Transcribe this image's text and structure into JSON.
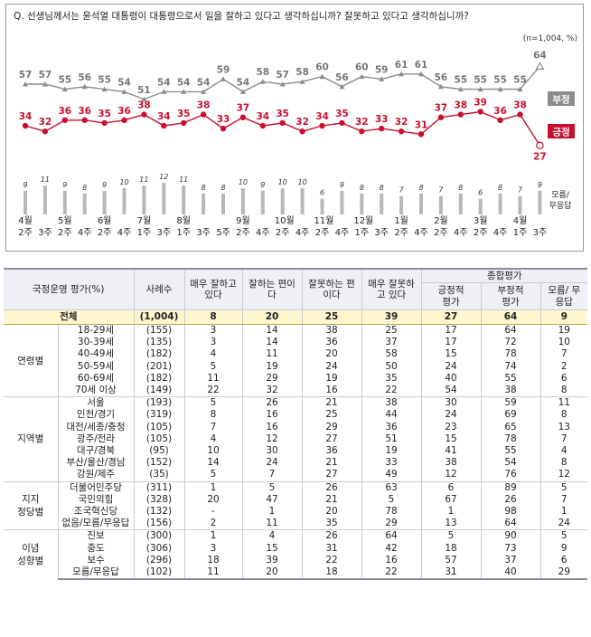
{
  "question": "Q. 선생님께서는 윤석열 대통령이 대통령으로서 일을 잘하고 있다고 생각하십니까? 잘못하고 있다고 생각하십니까?",
  "sample_note": "(n=1,004,  %)",
  "colors": {
    "negative": "#8c8c8c",
    "positive": "#c8102e",
    "dontknow": "#b8b8b8"
  },
  "chart_data": {
    "type": "line",
    "x": [
      "4월 2주",
      "4월 3주",
      "5월 2주",
      "5월 4주",
      "6월 2주",
      "6월 4주",
      "7월 1주",
      "7월 3주",
      "8월 1주",
      "8월 3주",
      "8월 5주",
      "9월 2주",
      "9월 4주",
      "10월 2주",
      "10월 4주",
      "11월 2주",
      "11월 4주",
      "12월 1주",
      "12월 3주",
      "1월 2주",
      "1월 4주",
      "2월 2주",
      "2월 4주",
      "3월 2주",
      "3월 4주",
      "4월 1주",
      "4월 3주"
    ],
    "x_tick_labels": [
      {
        "top": "4월",
        "bottom": "2주"
      },
      {
        "top": "",
        "bottom": "3주"
      },
      {
        "top": "5월",
        "bottom": "2주"
      },
      {
        "top": "",
        "bottom": "4주"
      },
      {
        "top": "6월",
        "bottom": "2주"
      },
      {
        "top": "",
        "bottom": "4주"
      },
      {
        "top": "7월",
        "bottom": "1주"
      },
      {
        "top": "",
        "bottom": "3주"
      },
      {
        "top": "8월",
        "bottom": "1주"
      },
      {
        "top": "",
        "bottom": "3주"
      },
      {
        "top": "",
        "bottom": "5주"
      },
      {
        "top": "9월",
        "bottom": "2주"
      },
      {
        "top": "",
        "bottom": "4주"
      },
      {
        "top": "10월",
        "bottom": "2주"
      },
      {
        "top": "",
        "bottom": "4주"
      },
      {
        "top": "11월",
        "bottom": "2주"
      },
      {
        "top": "",
        "bottom": "4주"
      },
      {
        "top": "12월",
        "bottom": "1주"
      },
      {
        "top": "",
        "bottom": "3주"
      },
      {
        "top": "1월",
        "bottom": "2주"
      },
      {
        "top": "",
        "bottom": "4주"
      },
      {
        "top": "2월",
        "bottom": "2주"
      },
      {
        "top": "",
        "bottom": "4주"
      },
      {
        "top": "3월",
        "bottom": "2주"
      },
      {
        "top": "",
        "bottom": "4주"
      },
      {
        "top": "4월",
        "bottom": "1주"
      },
      {
        "top": "",
        "bottom": "3주"
      }
    ],
    "series": [
      {
        "name": "부정",
        "values": [
          57,
          57,
          55,
          56,
          55,
          54,
          51,
          54,
          54,
          54,
          59,
          54,
          58,
          57,
          58,
          60,
          56,
          60,
          59,
          61,
          61,
          56,
          55,
          55,
          55,
          55,
          64
        ]
      },
      {
        "name": "긍정",
        "values": [
          34,
          32,
          36,
          36,
          35,
          36,
          38,
          34,
          35,
          38,
          33,
          37,
          34,
          35,
          32,
          34,
          35,
          32,
          33,
          32,
          31,
          37,
          38,
          39,
          36,
          38,
          27
        ]
      },
      {
        "name": "모름/무응답",
        "values": [
          9,
          11,
          9,
          8,
          9,
          10,
          11,
          12,
          11,
          8,
          8,
          10,
          9,
          10,
          10,
          6,
          9,
          8,
          8,
          7,
          8,
          7,
          8,
          6,
          8,
          7,
          9
        ]
      }
    ]
  },
  "table": {
    "headers": {
      "col0": "국정운영 평가(%)",
      "col1": "사례수",
      "col2": "매우 잘하고 있다",
      "col3": "잘하는 편이다",
      "col4": "잘못하는 편이다",
      "col5": "매우 잘못하고 있다",
      "group": "종합평가",
      "col6": "긍정적 평가",
      "col7": "부정적 평가",
      "col8": "모름/ 무응답"
    },
    "total": {
      "label": "전체",
      "cells": [
        "(1,004)",
        "8",
        "20",
        "25",
        "39",
        "27",
        "64",
        "9"
      ]
    },
    "groups": [
      {
        "name": "연령별",
        "rows": [
          {
            "label": "18-29세",
            "cells": [
              "(155)",
              "3",
              "14",
              "38",
              "25",
              "17",
              "64",
              "19"
            ]
          },
          {
            "label": "30-39세",
            "cells": [
              "(135)",
              "3",
              "14",
              "36",
              "37",
              "17",
              "72",
              "10"
            ]
          },
          {
            "label": "40-49세",
            "cells": [
              "(182)",
              "4",
              "11",
              "20",
              "58",
              "15",
              "78",
              "7"
            ]
          },
          {
            "label": "50-59세",
            "cells": [
              "(201)",
              "5",
              "19",
              "24",
              "50",
              "24",
              "74",
              "2"
            ]
          },
          {
            "label": "60-69세",
            "cells": [
              "(182)",
              "11",
              "29",
              "19",
              "35",
              "40",
              "55",
              "6"
            ]
          },
          {
            "label": "70세 이상",
            "cells": [
              "(149)",
              "22",
              "32",
              "16",
              "22",
              "54",
              "38",
              "8"
            ]
          }
        ]
      },
      {
        "name": "지역별",
        "rows": [
          {
            "label": "서울",
            "cells": [
              "(193)",
              "5",
              "26",
              "21",
              "38",
              "30",
              "59",
              "11"
            ]
          },
          {
            "label": "인천/경기",
            "cells": [
              "(319)",
              "8",
              "16",
              "25",
              "44",
              "24",
              "69",
              "8"
            ]
          },
          {
            "label": "대전/세종/충청",
            "cells": [
              "(105)",
              "7",
              "16",
              "29",
              "36",
              "23",
              "65",
              "13"
            ]
          },
          {
            "label": "광주/전라",
            "cells": [
              "(105)",
              "4",
              "12",
              "27",
              "51",
              "15",
              "78",
              "7"
            ]
          },
          {
            "label": "대구/경북",
            "cells": [
              "(95)",
              "10",
              "30",
              "36",
              "19",
              "41",
              "55",
              "4"
            ]
          },
          {
            "label": "부산/울산/경남",
            "cells": [
              "(152)",
              "14",
              "24",
              "21",
              "33",
              "38",
              "54",
              "8"
            ]
          },
          {
            "label": "강원/제주",
            "cells": [
              "(35)",
              "5",
              "7",
              "27",
              "49",
              "12",
              "76",
              "12"
            ]
          }
        ]
      },
      {
        "name": "지지 정당별",
        "rows": [
          {
            "label": "더불어민주당",
            "cells": [
              "(311)",
              "1",
              "5",
              "26",
              "63",
              "6",
              "89",
              "5"
            ]
          },
          {
            "label": "국민의힘",
            "cells": [
              "(328)",
              "20",
              "47",
              "21",
              "5",
              "67",
              "26",
              "7"
            ]
          },
          {
            "label": "조국혁신당",
            "cells": [
              "(132)",
              "-",
              "1",
              "20",
              "78",
              "1",
              "98",
              "1"
            ]
          },
          {
            "label": "없음/모름/무응답",
            "cells": [
              "(156)",
              "2",
              "11",
              "35",
              "29",
              "13",
              "64",
              "24"
            ]
          }
        ]
      },
      {
        "name": "이념 성향별",
        "rows": [
          {
            "label": "진보",
            "cells": [
              "(300)",
              "1",
              "4",
              "26",
              "64",
              "5",
              "90",
              "5"
            ]
          },
          {
            "label": "중도",
            "cells": [
              "(306)",
              "3",
              "15",
              "31",
              "42",
              "18",
              "73",
              "9"
            ]
          },
          {
            "label": "보수",
            "cells": [
              "(296)",
              "18",
              "39",
              "22",
              "16",
              "57",
              "37",
              "6"
            ]
          },
          {
            "label": "모름/무응답",
            "cells": [
              "(102)",
              "11",
              "20",
              "18",
              "22",
              "31",
              "40",
              "29"
            ]
          }
        ]
      }
    ]
  }
}
